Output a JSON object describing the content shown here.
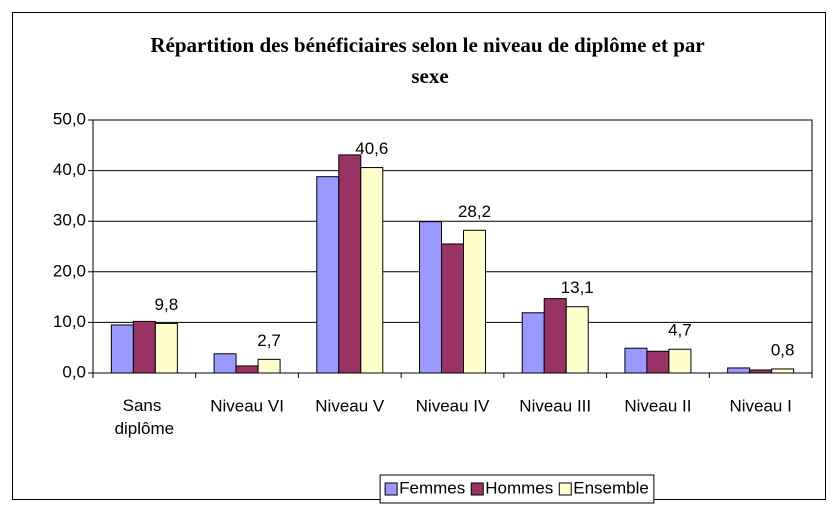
{
  "chart_data": {
    "type": "bar",
    "title": "Répartition des bénéficiaires selon le niveau de diplôme et par sexe",
    "categories": [
      "Sans diplôme",
      "Niveau VI",
      "Niveau V",
      "Niveau IV",
      "Niveau III",
      "Niveau II",
      "Niveau I"
    ],
    "series": [
      {
        "name": "Femmes",
        "color": "#9999ff",
        "values": [
          9.5,
          3.8,
          38.8,
          29.9,
          11.9,
          4.9,
          1.0
        ]
      },
      {
        "name": "Hommes",
        "color": "#993366",
        "values": [
          10.2,
          1.4,
          43.1,
          25.5,
          14.7,
          4.3,
          0.6
        ]
      },
      {
        "name": "Ensemble",
        "color": "#ffffcc",
        "values": [
          9.8,
          2.7,
          40.6,
          28.2,
          13.1,
          4.7,
          0.8
        ],
        "value_labels": [
          "9,8",
          "2,7",
          "40,6",
          "28,2",
          "13,1",
          "4,7",
          "0,8"
        ]
      }
    ],
    "ylim": [
      0,
      50
    ],
    "yticks": [
      {
        "value": 0,
        "label": "0,0"
      },
      {
        "value": 10,
        "label": "10,0"
      },
      {
        "value": 20,
        "label": "20,0"
      },
      {
        "value": 30,
        "label": "30,0"
      },
      {
        "value": 40,
        "label": "40,0"
      },
      {
        "value": 50,
        "label": "50,0"
      }
    ],
    "grid": true,
    "legend": "bottom"
  }
}
